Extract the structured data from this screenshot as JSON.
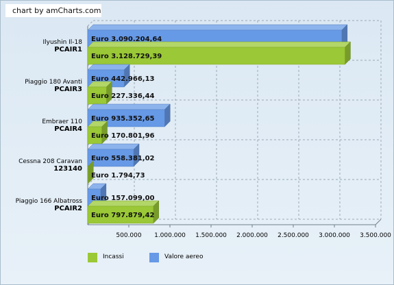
{
  "credit": "chart by amCharts.com",
  "colors": {
    "incassi": "#9ac836",
    "valore": "#6699e6"
  },
  "chart_data": {
    "type": "bar",
    "orientation": "horizontal",
    "categories": [
      {
        "name": "Ilyushin Il-18",
        "code": "PCAIR1"
      },
      {
        "name": "Piaggio 180 Avanti",
        "code": "PCAIR3"
      },
      {
        "name": "Embraer 110",
        "code": "PCAIR4"
      },
      {
        "name": "Cessna 208 Caravan",
        "code": "123140"
      },
      {
        "name": "Piaggio 166 Albatross",
        "code": "PCAIR2"
      }
    ],
    "series": [
      {
        "name": "Valore aereo",
        "color": "#6699e6",
        "values": [
          3090204.64,
          442966.13,
          935352.65,
          558381.02,
          157099.0
        ],
        "labels": [
          "Euro 3.090.204,64",
          "Euro 442.966,13",
          "Euro 935.352,65",
          "Euro 558.381,02",
          "Euro 157.099,00"
        ]
      },
      {
        "name": "Incassi",
        "color": "#9ac836",
        "values": [
          3128729.39,
          227336.44,
          170801.96,
          1794.73,
          797879.42
        ],
        "labels": [
          "Euro 3.128.729,39",
          "Euro 227.336,44",
          "Euro 170.801,96",
          "Euro 1.794,73",
          "Euro 797.879,42"
        ]
      }
    ],
    "xlim": [
      0,
      3500000
    ],
    "xticks": [
      500000,
      1000000,
      1500000,
      2000000,
      2500000,
      3000000,
      3500000
    ],
    "xtick_labels": [
      "500.000",
      "1.000.000",
      "1.500.000",
      "2.000.000",
      "2.500.000",
      "3.000.000",
      "3.500.000"
    ],
    "grid": true,
    "legend_position": "bottom-left",
    "legend": [
      {
        "label": "Incassi",
        "color": "#9ac836"
      },
      {
        "label": "Valore aereo",
        "color": "#6699e6"
      }
    ]
  }
}
